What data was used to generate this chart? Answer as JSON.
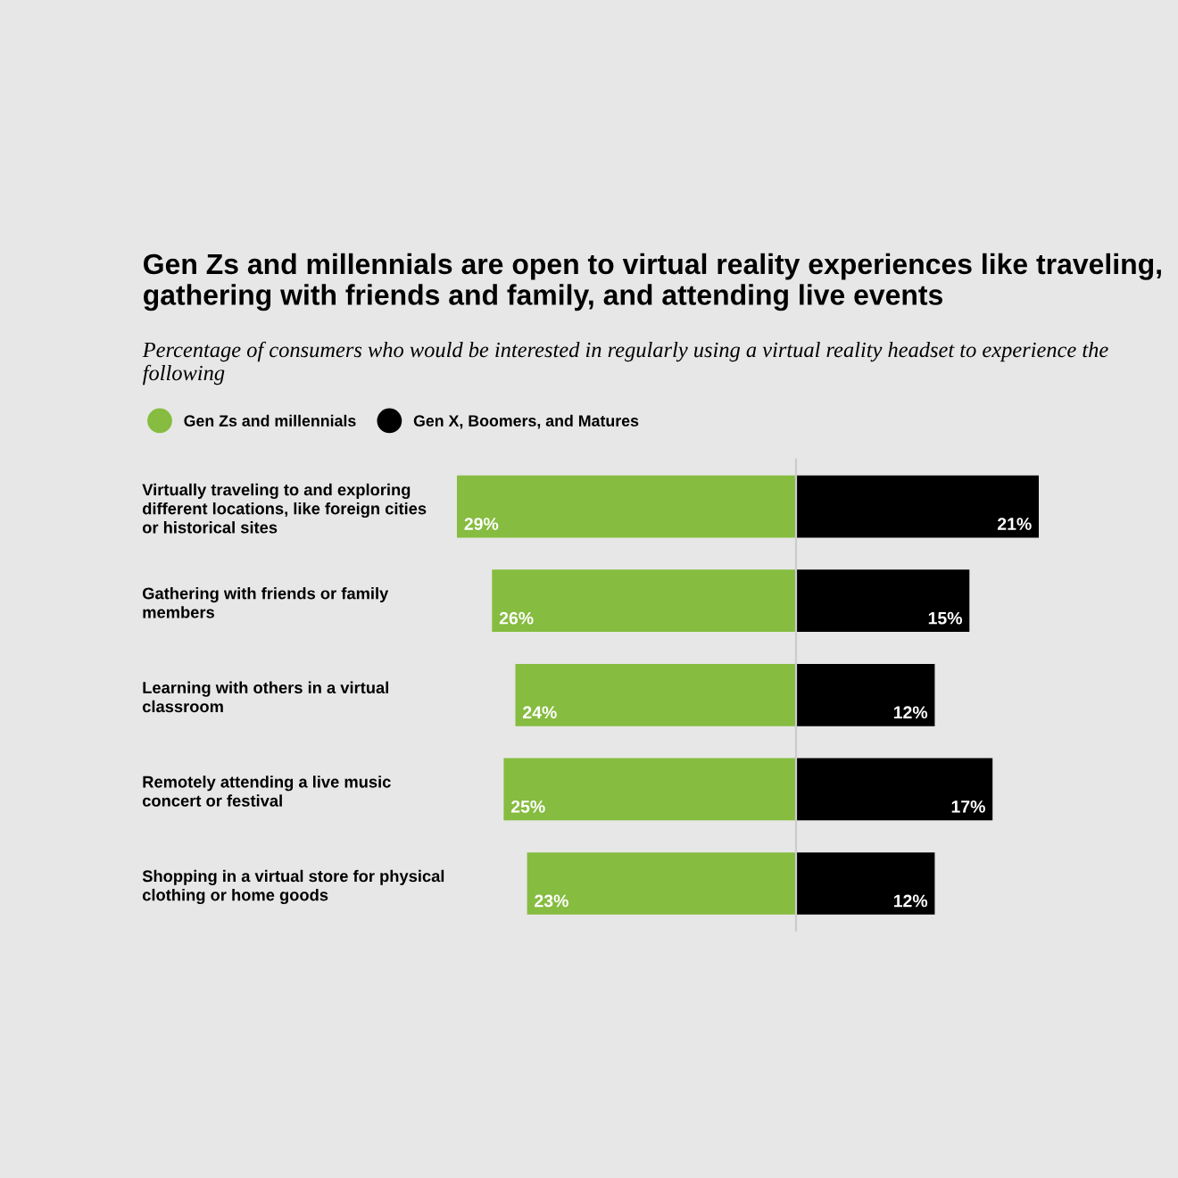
{
  "chart_data": [
    {
      "type": "bar",
      "orientation": "horizontal",
      "title": "Gen Zs and millennials are open to virtual reality experiences like traveling, gathering with friends and family, and attending live events",
      "subtitle": "Percentage of consumers who would be interested in regularly using a virtual reality headset to experience the following",
      "categories": [
        "Virtually traveling to and exploring\ndifferent locations, like foreign cities\nor historical sites",
        "Gathering with friends or family\nmembers",
        "Learning with others in a virtual\nclassroom",
        "Remotely attending a live music\nconcert or festival",
        "Shopping in a virtual store for physical\nclothing or home goods"
      ],
      "series": [
        {
          "name": "Gen Zs and millennials",
          "color": "#86bc40",
          "values": [
            29,
            26,
            24,
            25,
            23
          ],
          "value_labels": [
            "29%",
            "26%",
            "24%",
            "25%",
            "23%"
          ]
        }
      ],
      "xlim": [
        29,
        0
      ],
      "legend": "top left",
      "tick_labels": "y"
    },
    {
      "type": "bar",
      "orientation": "horizontal",
      "categories": [
        null,
        null,
        null,
        null,
        null
      ],
      "series": [
        {
          "name": "Gen X, Boomers, and Matures",
          "color": "#000000",
          "values": [
            21,
            15,
            12,
            17,
            12
          ],
          "value_labels": [
            "21%",
            "15%",
            "12%",
            "17%",
            "12%"
          ]
        }
      ],
      "xlim": [
        0,
        21
      ],
      "legend": "top left",
      "tick_labels": false
    }
  ]
}
